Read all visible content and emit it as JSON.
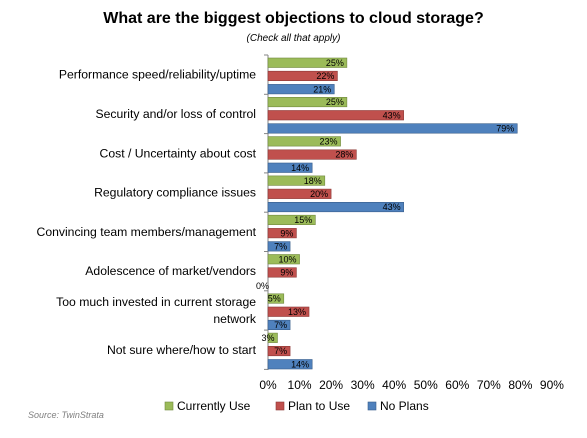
{
  "chart_data": {
    "type": "bar",
    "orientation": "horizontal",
    "title": "What are the biggest objections to cloud storage?",
    "subtitle": "(Check all that apply)",
    "source": "Source: TwinStrata",
    "categories": [
      "Performance speed/reliability/uptime",
      "Security and/or loss of control",
      "Cost / Uncertainty about cost",
      "Regulatory compliance issues",
      "Convincing team members/management",
      "Adolescence of market/vendors",
      "Too much invested in current storage network",
      "Not sure where/how to start"
    ],
    "category_lines": [
      [
        "Performance speed/reliability/uptime"
      ],
      [
        "Security and/or loss of control"
      ],
      [
        "Cost / Uncertainty about cost"
      ],
      [
        "Regulatory compliance issues"
      ],
      [
        "Convincing team members/management"
      ],
      [
        "Adolescence of market/vendors"
      ],
      [
        "Too much invested in current storage",
        "network"
      ],
      [
        "Not sure where/how to start"
      ]
    ],
    "series": [
      {
        "name": "Currently Use",
        "color": "#9bbb59",
        "border": "#71893f",
        "values": [
          25,
          25,
          23,
          18,
          15,
          10,
          5,
          3
        ]
      },
      {
        "name": "Plan to Use",
        "color": "#c0504d",
        "border": "#8c3836",
        "values": [
          22,
          43,
          28,
          20,
          9,
          9,
          13,
          7
        ]
      },
      {
        "name": "No Plans",
        "color": "#4f81bd",
        "border": "#385d8a",
        "values": [
          21,
          79,
          14,
          43,
          7,
          0,
          7,
          14
        ]
      }
    ],
    "value_suffix": "%",
    "xlim": [
      0,
      90
    ],
    "x_ticks": [
      0,
      10,
      20,
      30,
      40,
      50,
      60,
      70,
      80,
      90
    ],
    "x_tick_labels": [
      "0%",
      "10%",
      "20%",
      "30%",
      "40%",
      "50%",
      "60%",
      "70%",
      "80%",
      "90%"
    ],
    "grid": false,
    "legend_position": "bottom"
  }
}
